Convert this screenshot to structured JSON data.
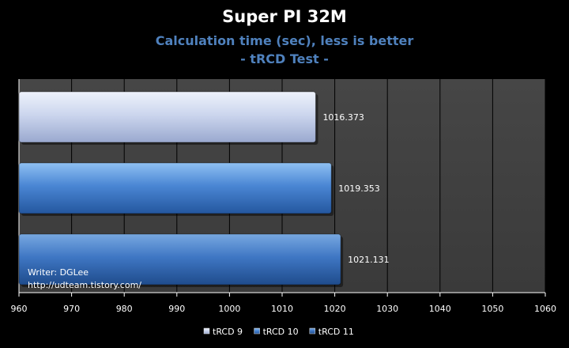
{
  "chart_data": {
    "type": "bar",
    "orientation": "horizontal",
    "title": "Super PI 32M",
    "subtitle": "Calculation time (sec), less is better",
    "subtitle2": "- tRCD Test -",
    "xlim": [
      960,
      1060
    ],
    "xticks": [
      960,
      970,
      980,
      990,
      1000,
      1010,
      1020,
      1030,
      1040,
      1050,
      1060
    ],
    "series": [
      {
        "name": "tRCD 9",
        "value": 1016.373,
        "label": "1016.373",
        "color": "#c9d3ec"
      },
      {
        "name": "tRCD 10",
        "value": 1019.353,
        "label": "1019.353",
        "color": "#4a86d4"
      },
      {
        "name": "tRCD 11",
        "value": 1021.131,
        "label": "1021.131",
        "color": "#3f77c4"
      }
    ],
    "legend_position": "bottom",
    "grid": true
  },
  "watermark": {
    "writer": "Writer: DGLee",
    "url": "http://udteam.tistory.com/"
  }
}
